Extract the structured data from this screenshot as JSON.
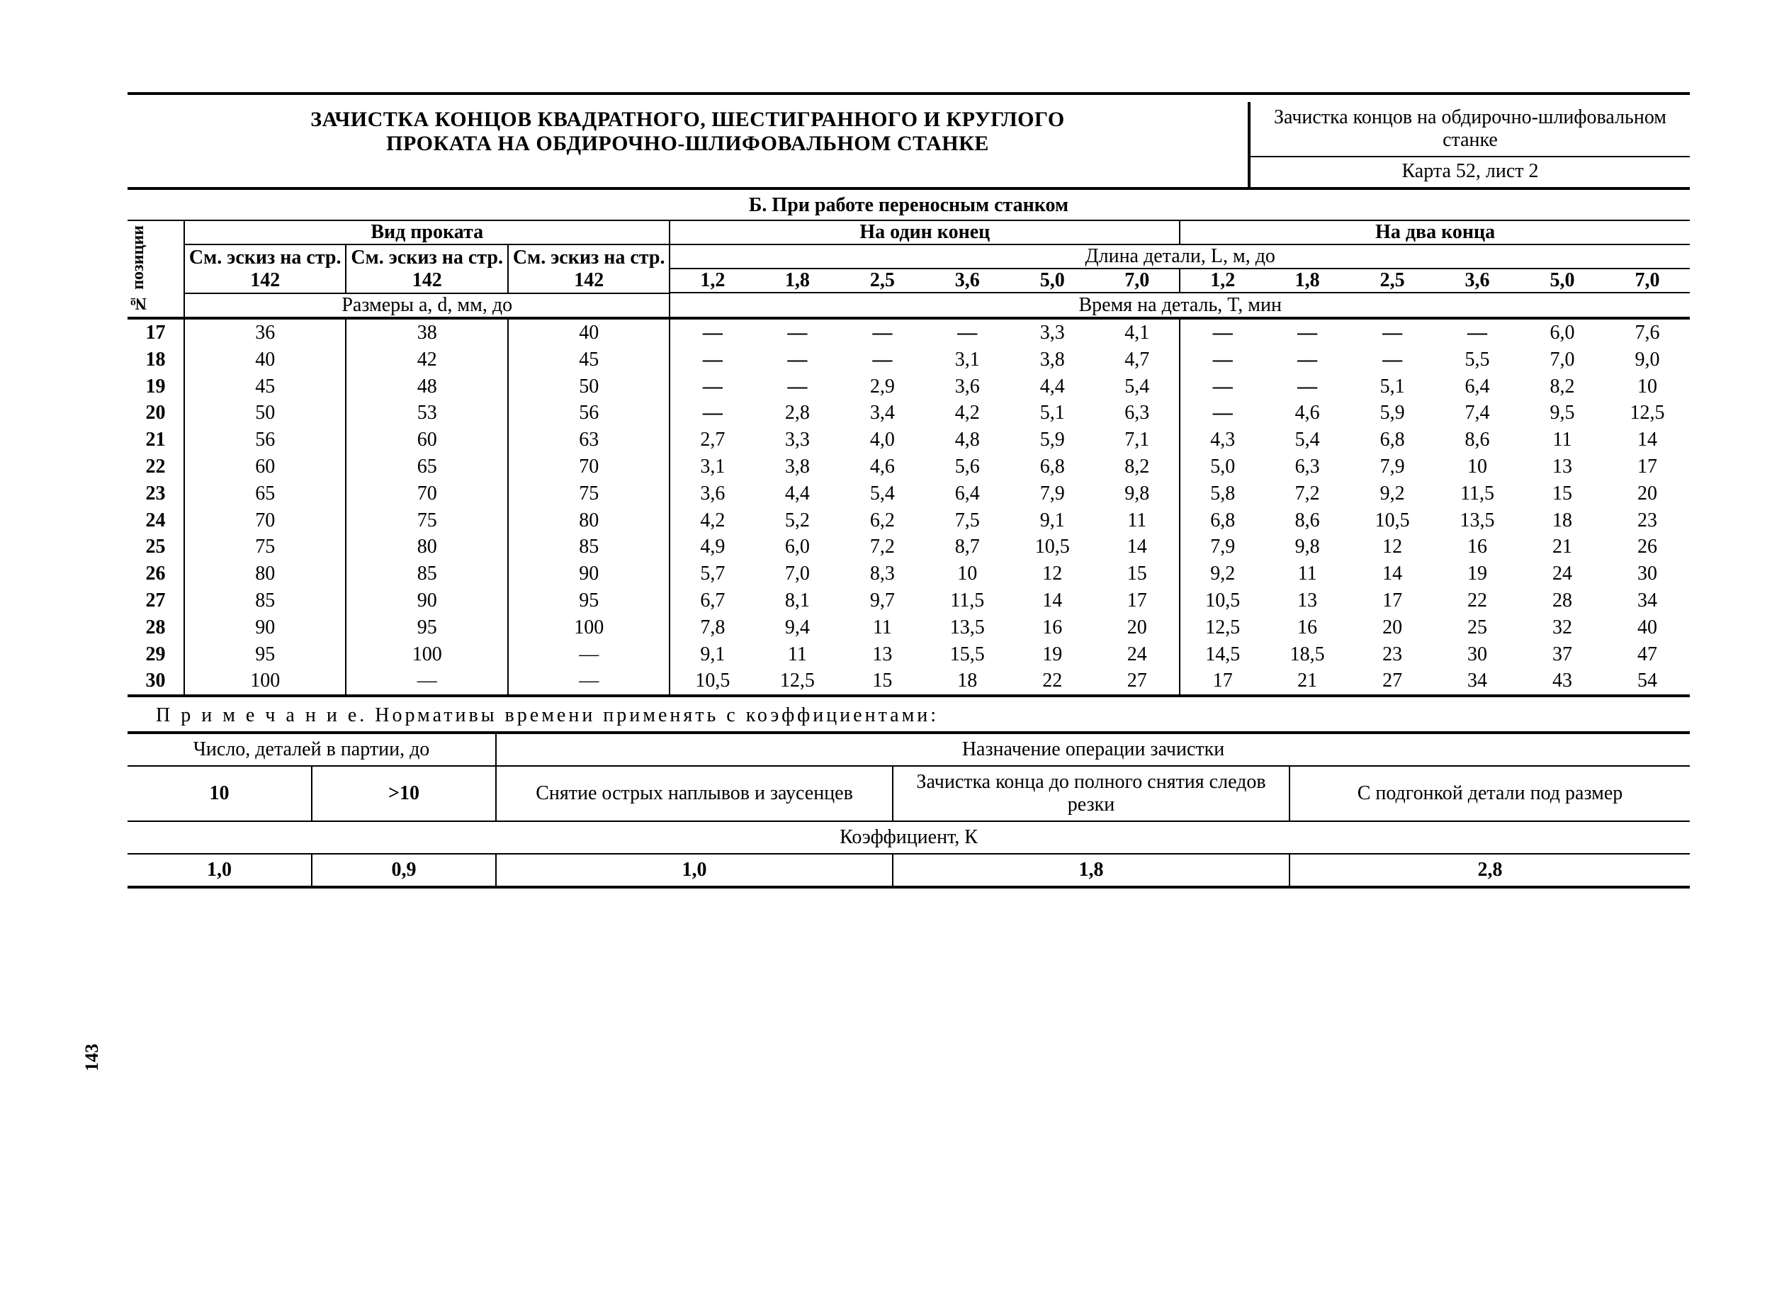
{
  "page_number": "143",
  "header": {
    "title_line1": "ЗАЧИСТКА КОНЦОВ КВАДРАТНОГО, ШЕСТИГРАННОГО И КРУГЛОГО",
    "title_line2": "ПРОКАТА НА ОБДИРОЧНО-ШЛИФОВАЛЬНОМ СТАНКЕ",
    "right_top": "Зачистка концов на обдирочно-шлифовальном станке",
    "right_bottom": "Карта 52, лист 2"
  },
  "section_b": "Б. При работе переносным станком",
  "col_headers": {
    "pos_label": "№ позиции",
    "vid_prokata": "Вид проката",
    "na_odin": "На один конец",
    "na_dva": "На два конца",
    "sketch1": "См. эскиз на стр. 142",
    "sketch2": "См. эскиз на стр. 142",
    "sketch3": "См. эскиз на стр. 142",
    "dlina_detali": "Длина детали, L, м, до",
    "razmery": "Размеры a, d, мм, до",
    "vremya": "Время на деталь, T, мин",
    "L_vals_one": [
      "1,2",
      "1,8",
      "2,5",
      "3,6",
      "5,0",
      "7,0"
    ],
    "L_vals_two": [
      "1,2",
      "1,8",
      "2,5",
      "3,6",
      "5,0",
      "7,0"
    ]
  },
  "rows": [
    {
      "p": "17",
      "a": "36",
      "b": "38",
      "c": "40",
      "o": [
        "—",
        "—",
        "—",
        "—",
        "3,3",
        "4,1"
      ],
      "t": [
        "—",
        "—",
        "—",
        "—",
        "6,0",
        "7,6"
      ]
    },
    {
      "p": "18",
      "a": "40",
      "b": "42",
      "c": "45",
      "o": [
        "—",
        "—",
        "—",
        "3,1",
        "3,8",
        "4,7"
      ],
      "t": [
        "—",
        "—",
        "—",
        "5,5",
        "7,0",
        "9,0"
      ]
    },
    {
      "p": "19",
      "a": "45",
      "b": "48",
      "c": "50",
      "o": [
        "—",
        "—",
        "2,9",
        "3,6",
        "4,4",
        "5,4"
      ],
      "t": [
        "—",
        "—",
        "5,1",
        "6,4",
        "8,2",
        "10"
      ]
    },
    {
      "p": "20",
      "a": "50",
      "b": "53",
      "c": "56",
      "o": [
        "—",
        "2,8",
        "3,4",
        "4,2",
        "5,1",
        "6,3"
      ],
      "t": [
        "—",
        "4,6",
        "5,9",
        "7,4",
        "9,5",
        "12,5"
      ]
    },
    {
      "p": "21",
      "a": "56",
      "b": "60",
      "c": "63",
      "o": [
        "2,7",
        "3,3",
        "4,0",
        "4,8",
        "5,9",
        "7,1"
      ],
      "t": [
        "4,3",
        "5,4",
        "6,8",
        "8,6",
        "11",
        "14"
      ]
    },
    {
      "p": "22",
      "a": "60",
      "b": "65",
      "c": "70",
      "o": [
        "3,1",
        "3,8",
        "4,6",
        "5,6",
        "6,8",
        "8,2"
      ],
      "t": [
        "5,0",
        "6,3",
        "7,9",
        "10",
        "13",
        "17"
      ]
    },
    {
      "p": "23",
      "a": "65",
      "b": "70",
      "c": "75",
      "o": [
        "3,6",
        "4,4",
        "5,4",
        "6,4",
        "7,9",
        "9,8"
      ],
      "t": [
        "5,8",
        "7,2",
        "9,2",
        "11,5",
        "15",
        "20"
      ]
    },
    {
      "p": "24",
      "a": "70",
      "b": "75",
      "c": "80",
      "o": [
        "4,2",
        "5,2",
        "6,2",
        "7,5",
        "9,1",
        "11"
      ],
      "t": [
        "6,8",
        "8,6",
        "10,5",
        "13,5",
        "18",
        "23"
      ]
    },
    {
      "p": "25",
      "a": "75",
      "b": "80",
      "c": "85",
      "o": [
        "4,9",
        "6,0",
        "7,2",
        "8,7",
        "10,5",
        "14"
      ],
      "t": [
        "7,9",
        "9,8",
        "12",
        "16",
        "21",
        "26"
      ]
    },
    {
      "p": "26",
      "a": "80",
      "b": "85",
      "c": "90",
      "o": [
        "5,7",
        "7,0",
        "8,3",
        "10",
        "12",
        "15"
      ],
      "t": [
        "9,2",
        "11",
        "14",
        "19",
        "24",
        "30"
      ]
    },
    {
      "p": "27",
      "a": "85",
      "b": "90",
      "c": "95",
      "o": [
        "6,7",
        "8,1",
        "9,7",
        "11,5",
        "14",
        "17"
      ],
      "t": [
        "10,5",
        "13",
        "17",
        "22",
        "28",
        "34"
      ]
    },
    {
      "p": "28",
      "a": "90",
      "b": "95",
      "c": "100",
      "o": [
        "7,8",
        "9,4",
        "11",
        "13,5",
        "16",
        "20"
      ],
      "t": [
        "12,5",
        "16",
        "20",
        "25",
        "32",
        "40"
      ]
    },
    {
      "p": "29",
      "a": "95",
      "b": "100",
      "c": "—",
      "o": [
        "9,1",
        "11",
        "13",
        "15,5",
        "19",
        "24"
      ],
      "t": [
        "14,5",
        "18,5",
        "23",
        "30",
        "37",
        "47"
      ]
    },
    {
      "p": "30",
      "a": "100",
      "b": "—",
      "c": "—",
      "o": [
        "10,5",
        "12,5",
        "15",
        "18",
        "22",
        "27"
      ],
      "t": [
        "17",
        "21",
        "27",
        "34",
        "43",
        "54"
      ]
    }
  ],
  "note_text": "П р и м е ч а н и е. Нормативы времени применять с коэффициентами:",
  "coeff": {
    "h1": "Число, деталей в  партии, до",
    "h2": "Назначение операции зачистки",
    "c10": "10",
    "cgt10": ">10",
    "op1": "Снятие острых наплывов и заусенцев",
    "op2": "Зачистка конца до полного снятия следов резки",
    "op3": "С  подгонкой детали под размер",
    "klabel": "Коэффициент, К",
    "v1": "1,0",
    "v2": "0,9",
    "v3": "1,0",
    "v4": "1,8",
    "v5": "2,8"
  }
}
